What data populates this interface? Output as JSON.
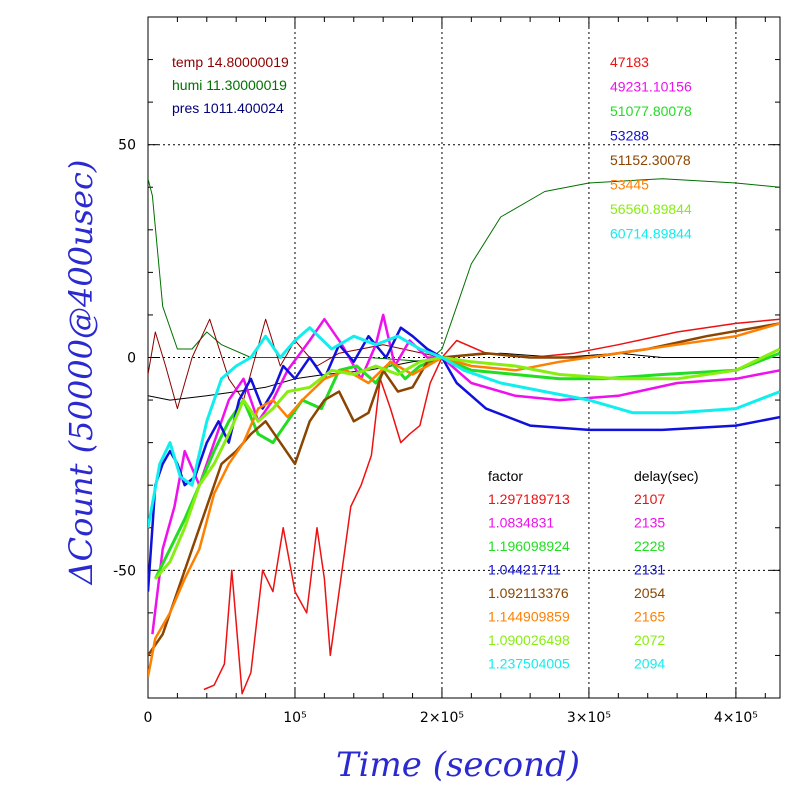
{
  "chart_data": {
    "type": "line",
    "xlabel": "Time (second)",
    "ylabel": "ΔCount (50000@400usec)",
    "xlim": [
      0,
      430000
    ],
    "ylim": [
      -80,
      80
    ],
    "x_ticks": [
      {
        "value": 0,
        "label": "0"
      },
      {
        "value": 100000,
        "label": "10⁵"
      },
      {
        "value": 200000,
        "label": "2×10⁵"
      },
      {
        "value": 300000,
        "label": "3×10⁵"
      },
      {
        "value": 400000,
        "label": "4×10⁵"
      }
    ],
    "y_ticks": [
      {
        "value": -50,
        "label": "-50"
      },
      {
        "value": 0,
        "label": "0"
      },
      {
        "value": 50,
        "label": "50"
      }
    ],
    "grid": true,
    "env_legend": [
      {
        "label": "temp 14.80000019",
        "color": "#8b0000"
      },
      {
        "label": "humi 11.30000019",
        "color": "#007000"
      },
      {
        "label": "pres 1011.400024",
        "color": "#00007a"
      }
    ],
    "value_legend": [
      {
        "label": "47183",
        "color": "#ee1111"
      },
      {
        "label": "49231.10156",
        "color": "#ee11ee"
      },
      {
        "label": "51077.80078",
        "color": "#22dd22"
      },
      {
        "label": "53288",
        "color": "#1111dd"
      },
      {
        "label": "51152.30078",
        "color": "#8b4500"
      },
      {
        "label": "53445",
        "color": "#ff8000"
      },
      {
        "label": "56560.89844",
        "color": "#88ee11"
      },
      {
        "label": "60714.89844",
        "color": "#11eeee"
      }
    ],
    "table_headers": {
      "factor": "factor",
      "delay": "delay(sec)"
    },
    "table_rows": [
      {
        "factor": "1.297189713",
        "delay": "2107",
        "color": "#ee1111"
      },
      {
        "factor": "1.0834831",
        "delay": "2135",
        "color": "#ee11ee"
      },
      {
        "factor": "1.196098924",
        "delay": "2228",
        "color": "#22dd22"
      },
      {
        "factor": "1.04421711",
        "delay": "2131",
        "color": "#1111dd"
      },
      {
        "factor": "1.092113376",
        "delay": "2054",
        "color": "#8b4500"
      },
      {
        "factor": "1.144909859",
        "delay": "2165",
        "color": "#ff8000"
      },
      {
        "factor": "1.090026498",
        "delay": "2072",
        "color": "#88ee11"
      },
      {
        "factor": "1.237504005",
        "delay": "2094",
        "color": "#11eeee"
      }
    ],
    "series": [
      {
        "color": "#007000",
        "width": 1,
        "x": [
          0,
          3000,
          10000,
          20000,
          30000,
          40000,
          50000,
          70000,
          100000,
          150000,
          190000,
          200000,
          210000,
          220000,
          240000,
          270000,
          300000,
          350000,
          400000,
          430000
        ],
        "y": [
          42,
          38,
          12,
          2,
          2,
          6,
          3,
          0,
          0,
          0,
          -1,
          2,
          12,
          22,
          33,
          39,
          41,
          42,
          41,
          40
        ]
      },
      {
        "color": "#8b0000",
        "width": 1,
        "x": [
          0,
          5000,
          12000,
          20000,
          30000,
          42000,
          55000,
          65000,
          80000,
          90000,
          100000,
          115000,
          130000,
          160000,
          200000
        ],
        "y": [
          -4,
          6,
          -2,
          -12,
          0,
          9,
          -5,
          -10,
          9,
          -2,
          4,
          -2,
          1,
          3,
          0
        ]
      },
      {
        "color": "#000000",
        "width": 1,
        "x": [
          0,
          15000,
          40000,
          60000,
          80000,
          100000,
          120000,
          150000,
          180000,
          200000,
          240000,
          280000,
          320000,
          350000,
          400000,
          430000
        ],
        "y": [
          -9,
          -10,
          -9,
          -8,
          -7,
          -5,
          -4,
          -3,
          -1,
          0,
          1,
          0,
          1,
          0,
          0,
          0
        ]
      },
      {
        "color": "#ee1111",
        "width": 1.5,
        "x": [
          38000,
          45000,
          52000,
          57000,
          64000,
          70000,
          78000,
          85000,
          92000,
          100000,
          108000,
          115000,
          120000,
          124000,
          130000,
          138000,
          145000,
          152000,
          158000,
          165000,
          172000,
          178000,
          185000,
          192000,
          200000,
          210000,
          230000,
          260000,
          290000,
          320000,
          360000,
          400000,
          430000
        ],
        "y": [
          -78,
          -77,
          -72,
          -50,
          -79,
          -74,
          -50,
          -55,
          -40,
          -55,
          -60,
          -40,
          -52,
          -70,
          -55,
          -35,
          -30,
          -23,
          -5,
          -12,
          -20,
          -18,
          -16,
          -6,
          0,
          4,
          1,
          0,
          1,
          3,
          6,
          8,
          9
        ]
      },
      {
        "color": "#ee11ee",
        "width": 2.5,
        "x": [
          3000,
          10000,
          18000,
          25000,
          35000,
          45000,
          55000,
          65000,
          75000,
          85000,
          95000,
          110000,
          120000,
          132000,
          145000,
          155000,
          160000,
          168000,
          178000,
          190000,
          200000,
          220000,
          250000,
          280000,
          320000,
          360000,
          400000,
          430000
        ],
        "y": [
          -65,
          -45,
          -35,
          -22,
          -30,
          -20,
          -10,
          -5,
          -15,
          -10,
          -3,
          4,
          9,
          3,
          -5,
          3,
          10,
          -2,
          4,
          0,
          0,
          -6,
          -9,
          -10,
          -9,
          -6,
          -5,
          -3
        ]
      },
      {
        "color": "#22dd22",
        "width": 3,
        "x": [
          5000,
          15000,
          25000,
          35000,
          45000,
          55000,
          65000,
          75000,
          85000,
          95000,
          105000,
          118000,
          130000,
          142000,
          155000,
          165000,
          175000,
          185000,
          200000,
          220000,
          250000,
          280000,
          310000,
          350000,
          400000,
          430000
        ],
        "y": [
          -52,
          -45,
          -38,
          -30,
          -22,
          -15,
          -10,
          -18,
          -20,
          -15,
          -10,
          -12,
          -3,
          -2,
          -6,
          -1,
          -5,
          -2,
          0,
          -3,
          -4,
          -5,
          -5,
          -4,
          -3,
          1
        ]
      },
      {
        "color": "#1111dd",
        "width": 2.5,
        "x": [
          0,
          5000,
          10000,
          15000,
          20000,
          25000,
          32000,
          40000,
          48000,
          55000,
          62000,
          70000,
          78000,
          85000,
          92000,
          100000,
          110000,
          120000,
          130000,
          140000,
          150000,
          162000,
          172000,
          180000,
          190000,
          200000,
          210000,
          230000,
          260000,
          300000,
          350000,
          400000,
          430000
        ],
        "y": [
          -55,
          -30,
          -25,
          -22,
          -25,
          -30,
          -28,
          -20,
          -15,
          -20,
          -10,
          -5,
          -12,
          -8,
          -2,
          -5,
          0,
          -5,
          3,
          -1,
          5,
          0,
          7,
          5,
          2,
          0,
          -6,
          -12,
          -16,
          -17,
          -17,
          -16,
          -14
        ]
      },
      {
        "color": "#8b4500",
        "width": 2.5,
        "x": [
          0,
          10000,
          20000,
          30000,
          40000,
          50000,
          60000,
          70000,
          80000,
          90000,
          100000,
          110000,
          120000,
          130000,
          140000,
          150000,
          160000,
          170000,
          180000,
          190000,
          200000,
          230000,
          260000,
          300000,
          340000,
          380000,
          430000
        ],
        "y": [
          -70,
          -65,
          -55,
          -45,
          -35,
          -25,
          -22,
          -18,
          -15,
          -20,
          -25,
          -15,
          -10,
          -8,
          -15,
          -13,
          -3,
          -8,
          -7,
          -1,
          0,
          1,
          0,
          0,
          2,
          5,
          8
        ]
      },
      {
        "color": "#ff8000",
        "width": 2.5,
        "x": [
          0,
          5000,
          15000,
          25000,
          35000,
          45000,
          55000,
          65000,
          75000,
          85000,
          95000,
          105000,
          120000,
          135000,
          150000,
          165000,
          180000,
          200000,
          220000,
          250000,
          280000,
          320000,
          360000,
          400000,
          430000
        ],
        "y": [
          -75,
          -66,
          -60,
          -52,
          -45,
          -32,
          -25,
          -20,
          -12,
          -10,
          -14,
          -10,
          -5,
          -3,
          -6,
          -1,
          -4,
          0,
          -2,
          -3,
          -1,
          1,
          3,
          5,
          8
        ]
      },
      {
        "color": "#88ee11",
        "width": 3,
        "x": [
          5000,
          15000,
          25000,
          35000,
          45000,
          55000,
          65000,
          75000,
          85000,
          95000,
          110000,
          125000,
          140000,
          155000,
          170000,
          185000,
          200000,
          220000,
          250000,
          280000,
          320000,
          360000,
          400000,
          430000
        ],
        "y": [
          -52,
          -48,
          -40,
          -30,
          -25,
          -18,
          -10,
          -15,
          -12,
          -8,
          -7,
          -3,
          -4,
          -2,
          -4,
          -1,
          0,
          -1,
          -2,
          -4,
          -5,
          -5,
          -3,
          2
        ]
      },
      {
        "color": "#11eeee",
        "width": 3,
        "x": [
          0,
          8000,
          15000,
          22000,
          30000,
          40000,
          50000,
          60000,
          70000,
          80000,
          90000,
          100000,
          110000,
          125000,
          140000,
          155000,
          170000,
          185000,
          200000,
          215000,
          240000,
          270000,
          300000,
          330000,
          360000,
          400000,
          430000
        ],
        "y": [
          -40,
          -25,
          -20,
          -28,
          -30,
          -15,
          -5,
          -2,
          0,
          5,
          0,
          4,
          7,
          2,
          5,
          3,
          5,
          2,
          0,
          -3,
          -6,
          -8,
          -10,
          -13,
          -13,
          -12,
          -8
        ]
      }
    ]
  }
}
